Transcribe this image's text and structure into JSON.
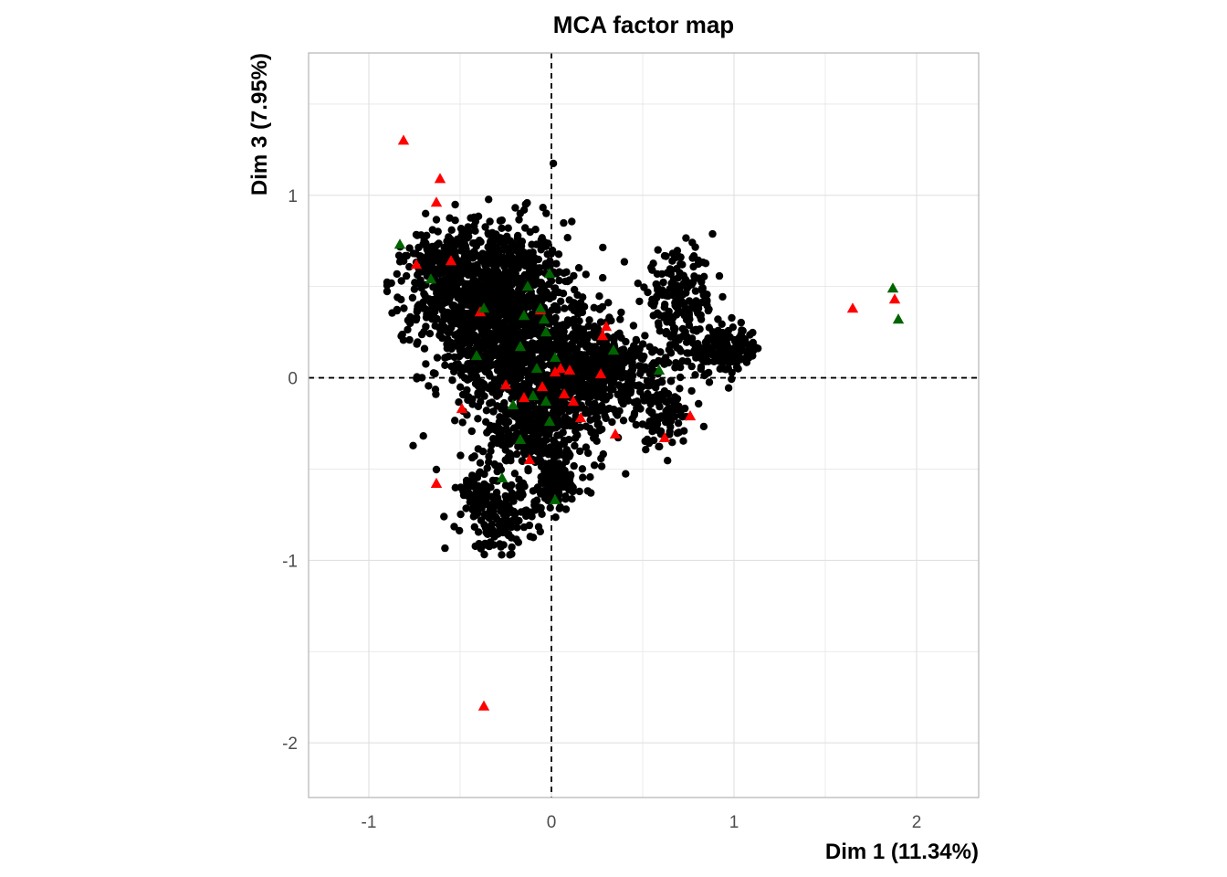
{
  "chart_data": {
    "type": "scatter",
    "title": "MCA factor map",
    "xlabel": "Dim 1 (11.34%)",
    "ylabel": "Dim 3 (7.95%)",
    "xlim": [
      -1.33,
      2.34
    ],
    "ylim": [
      -2.3,
      1.78
    ],
    "x_ticks": [
      -1,
      0,
      1,
      2
    ],
    "y_ticks": [
      -2,
      -1,
      0,
      1
    ],
    "x_tick_labels": [
      "-1",
      "0",
      "1",
      "2"
    ],
    "y_tick_labels": [
      "-2",
      "-1",
      "0",
      "1"
    ],
    "grid": true,
    "reference_lines": {
      "x": 0,
      "y": 0,
      "style": "dashed"
    },
    "colors": {
      "individuals": "#000000",
      "category_a": "#FF0000",
      "category_b": "#006400",
      "grid": "#dedede",
      "panel_border": "#b3b3b3"
    },
    "individual_clusters": [
      {
        "cx": -0.32,
        "cy": 0.42,
        "sx": 0.2,
        "sy": 0.22,
        "n": 1100
      },
      {
        "cx": -0.05,
        "cy": 0.05,
        "sx": 0.22,
        "sy": 0.2,
        "n": 800
      },
      {
        "cx": 0.35,
        "cy": 0.02,
        "sx": 0.18,
        "sy": 0.12,
        "n": 300
      },
      {
        "cx": -0.08,
        "cy": -0.3,
        "sx": 0.14,
        "sy": 0.14,
        "n": 250
      },
      {
        "cx": -0.28,
        "cy": -0.78,
        "sx": 0.1,
        "sy": 0.09,
        "n": 150
      },
      {
        "cx": 0.02,
        "cy": -0.58,
        "sx": 0.08,
        "sy": 0.07,
        "n": 120
      },
      {
        "cx": -0.4,
        "cy": -0.62,
        "sx": 0.06,
        "sy": 0.06,
        "n": 60
      },
      {
        "cx": 0.7,
        "cy": 0.42,
        "sx": 0.1,
        "sy": 0.13,
        "n": 200
      },
      {
        "cx": 0.95,
        "cy": 0.15,
        "sx": 0.1,
        "sy": 0.06,
        "n": 160
      },
      {
        "cx": 0.6,
        "cy": -0.22,
        "sx": 0.09,
        "sy": 0.09,
        "n": 80
      },
      {
        "cx": -0.6,
        "cy": 0.6,
        "sx": 0.1,
        "sy": 0.1,
        "n": 160
      }
    ],
    "series": [
      {
        "marker": "triangle",
        "color": "#FF0000",
        "points": [
          [
            -0.81,
            1.3
          ],
          [
            -0.61,
            1.09
          ],
          [
            -0.63,
            0.96
          ],
          [
            -0.74,
            0.62
          ],
          [
            -0.55,
            0.64
          ],
          [
            -0.39,
            0.36
          ],
          [
            -0.06,
            0.37
          ],
          [
            0.3,
            0.28
          ],
          [
            0.28,
            0.23
          ],
          [
            0.05,
            0.05
          ],
          [
            0.02,
            0.03
          ],
          [
            0.1,
            0.04
          ],
          [
            0.27,
            0.02
          ],
          [
            -0.25,
            -0.04
          ],
          [
            -0.05,
            -0.05
          ],
          [
            0.07,
            -0.09
          ],
          [
            0.12,
            -0.13
          ],
          [
            -0.15,
            -0.11
          ],
          [
            0.16,
            -0.22
          ],
          [
            -0.49,
            -0.17
          ],
          [
            0.35,
            -0.31
          ],
          [
            0.62,
            -0.33
          ],
          [
            0.76,
            -0.21
          ],
          [
            -0.12,
            -0.45
          ],
          [
            -0.63,
            -0.58
          ],
          [
            -0.37,
            -1.8
          ],
          [
            1.65,
            0.38
          ],
          [
            1.88,
            0.43
          ]
        ]
      },
      {
        "marker": "triangle",
        "color": "#006400",
        "points": [
          [
            -0.83,
            0.73
          ],
          [
            -0.66,
            0.54
          ],
          [
            -0.01,
            0.57
          ],
          [
            -0.13,
            0.5
          ],
          [
            -0.37,
            0.38
          ],
          [
            -0.15,
            0.34
          ],
          [
            -0.06,
            0.38
          ],
          [
            -0.04,
            0.32
          ],
          [
            -0.03,
            0.25
          ],
          [
            -0.17,
            0.17
          ],
          [
            -0.41,
            0.12
          ],
          [
            0.02,
            0.11
          ],
          [
            -0.08,
            0.05
          ],
          [
            0.34,
            0.15
          ],
          [
            0.59,
            0.04
          ],
          [
            -0.1,
            -0.1
          ],
          [
            -0.03,
            -0.13
          ],
          [
            -0.21,
            -0.15
          ],
          [
            -0.01,
            -0.24
          ],
          [
            -0.17,
            -0.34
          ],
          [
            -0.27,
            -0.55
          ],
          [
            0.02,
            -0.67
          ],
          [
            1.87,
            0.49
          ],
          [
            1.9,
            0.32
          ]
        ]
      }
    ]
  }
}
